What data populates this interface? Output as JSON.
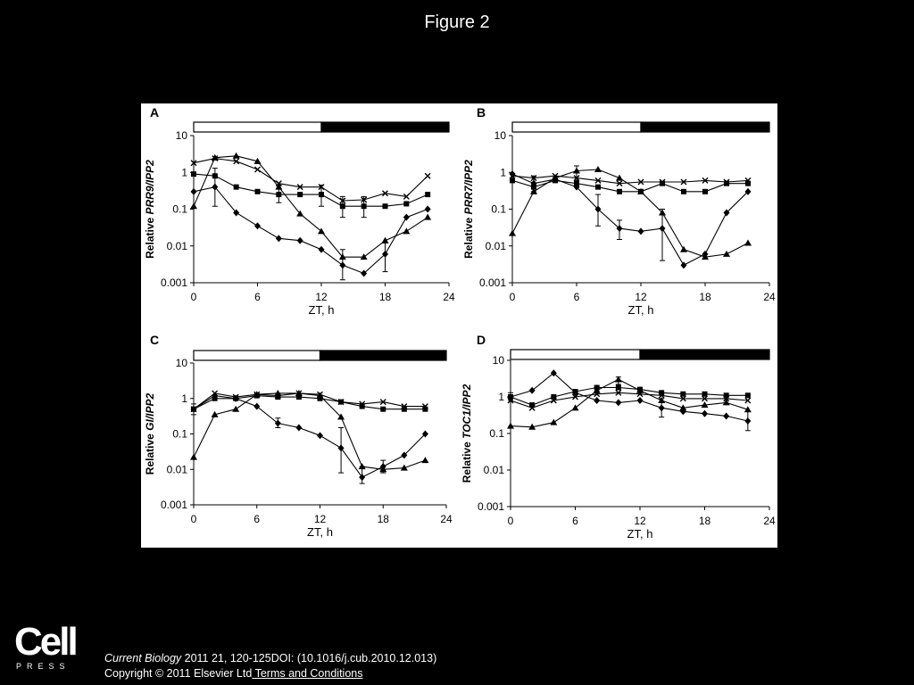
{
  "slide": {
    "title": "Figure 2"
  },
  "citation": {
    "journal": "Current Biology",
    "details": " 2011 21, 120-125DOI: (10.1016/j.cub.2010.12.013)",
    "copyright": "Copyright © 2011 Elsevier Ltd",
    "terms_link": " Terms and Conditions"
  },
  "logo": {
    "word": "Cell",
    "sub": "PRESS"
  },
  "colors": {
    "background": "#000000",
    "panel": "#ffffff",
    "ink": "#000000"
  },
  "chart_data": [
    {
      "panel": "A",
      "type": "line",
      "yscale": "log",
      "ylabel_prefix": "Relative ",
      "gene": "PRR9",
      "ylabel_suffix": "/IPP2",
      "xlabel": "ZT, h",
      "xlim": [
        0,
        24
      ],
      "ylim": [
        0.001,
        10
      ],
      "xticks": [
        "0",
        "6",
        "12",
        "18",
        "24"
      ],
      "yticks": [
        "10",
        "1",
        "0.1",
        "0.01",
        "0.001"
      ],
      "light_dark_bar": {
        "light": [
          0,
          12
        ],
        "dark": [
          12,
          24
        ]
      },
      "series": [
        {
          "marker": "diamond",
          "points": [
            [
              0,
              0.3
            ],
            [
              2,
              0.4
            ],
            [
              4,
              0.08
            ],
            [
              6,
              0.035
            ],
            [
              8,
              0.016
            ],
            [
              10,
              0.014
            ],
            [
              12,
              0.008
            ],
            [
              14,
              0.003
            ],
            [
              16,
              0.0018
            ],
            [
              18,
              0.006
            ],
            [
              20,
              0.06
            ],
            [
              22,
              0.1
            ]
          ]
        },
        {
          "marker": "square",
          "points": [
            [
              0,
              0.9
            ],
            [
              2,
              0.8
            ],
            [
              4,
              0.4
            ],
            [
              6,
              0.3
            ],
            [
              8,
              0.25
            ],
            [
              10,
              0.25
            ],
            [
              12,
              0.25
            ],
            [
              14,
              0.12
            ],
            [
              16,
              0.12
            ],
            [
              18,
              0.12
            ],
            [
              20,
              0.14
            ],
            [
              22,
              0.25
            ]
          ]
        },
        {
          "marker": "triangle",
          "points": [
            [
              0,
              0.12
            ],
            [
              2,
              2.5
            ],
            [
              4,
              2.8
            ],
            [
              6,
              2.0
            ],
            [
              8,
              0.4
            ],
            [
              10,
              0.075
            ],
            [
              12,
              0.025
            ],
            [
              14,
              0.005
            ],
            [
              16,
              0.005
            ],
            [
              18,
              0.014
            ],
            [
              20,
              0.025
            ],
            [
              22,
              0.06
            ]
          ]
        },
        {
          "marker": "cross",
          "points": [
            [
              0,
              1.8
            ],
            [
              2,
              2.4
            ],
            [
              4,
              2.0
            ],
            [
              6,
              1.2
            ],
            [
              8,
              0.5
            ],
            [
              10,
              0.4
            ],
            [
              12,
              0.4
            ],
            [
              14,
              0.17
            ],
            [
              16,
              0.18
            ],
            [
              18,
              0.27
            ],
            [
              20,
              0.22
            ],
            [
              22,
              0.8
            ]
          ]
        }
      ],
      "error_bars": [
        [
          2,
          0.4,
          0.12,
          1.3
        ],
        [
          8,
          0.25,
          0.15,
          0.45
        ],
        [
          14,
          0.003,
          0.0012,
          0.008
        ],
        [
          14,
          0.12,
          0.06,
          0.22
        ],
        [
          16,
          0.12,
          0.06,
          0.22
        ],
        [
          18,
          0.006,
          0.002,
          0.012
        ],
        [
          12,
          0.25,
          0.12,
          0.45
        ]
      ]
    },
    {
      "panel": "B",
      "type": "line",
      "yscale": "log",
      "ylabel_prefix": "Relative ",
      "gene": "PRR7",
      "ylabel_suffix": "/IPP2",
      "xlabel": "ZT, h",
      "xlim": [
        0,
        24
      ],
      "ylim": [
        0.001,
        10
      ],
      "xticks": [
        "0",
        "6",
        "12",
        "18",
        "24"
      ],
      "yticks": [
        "10",
        "1",
        "0.1",
        "0.01",
        "0.001"
      ],
      "light_dark_bar": {
        "light": [
          0,
          12
        ],
        "dark": [
          12,
          24
        ]
      },
      "series": [
        {
          "marker": "diamond",
          "points": [
            [
              0,
              0.9
            ],
            [
              2,
              0.5
            ],
            [
              4,
              0.65
            ],
            [
              6,
              0.4
            ],
            [
              8,
              0.1
            ],
            [
              10,
              0.03
            ],
            [
              12,
              0.025
            ],
            [
              14,
              0.03
            ],
            [
              16,
              0.003
            ],
            [
              18,
              0.006
            ],
            [
              20,
              0.08
            ],
            [
              22,
              0.3
            ]
          ]
        },
        {
          "marker": "square",
          "points": [
            [
              0,
              0.6
            ],
            [
              2,
              0.4
            ],
            [
              4,
              0.6
            ],
            [
              6,
              0.5
            ],
            [
              8,
              0.4
            ],
            [
              10,
              0.3
            ],
            [
              12,
              0.3
            ],
            [
              14,
              0.5
            ],
            [
              16,
              0.3
            ],
            [
              18,
              0.3
            ],
            [
              20,
              0.5
            ],
            [
              22,
              0.5
            ]
          ]
        },
        {
          "marker": "triangle",
          "points": [
            [
              0,
              0.022
            ],
            [
              2,
              0.3
            ],
            [
              4,
              0.7
            ],
            [
              6,
              1.1
            ],
            [
              8,
              1.2
            ],
            [
              10,
              0.7
            ],
            [
              12,
              0.3
            ],
            [
              14,
              0.08
            ],
            [
              16,
              0.008
            ],
            [
              18,
              0.005
            ],
            [
              20,
              0.006
            ],
            [
              22,
              0.012
            ]
          ]
        },
        {
          "marker": "cross",
          "points": [
            [
              0,
              0.8
            ],
            [
              2,
              0.7
            ],
            [
              4,
              0.8
            ],
            [
              6,
              0.7
            ],
            [
              8,
              0.6
            ],
            [
              10,
              0.5
            ],
            [
              12,
              0.55
            ],
            [
              14,
              0.55
            ],
            [
              16,
              0.55
            ],
            [
              18,
              0.6
            ],
            [
              20,
              0.55
            ],
            [
              22,
              0.6
            ]
          ]
        }
      ],
      "error_bars": [
        [
          8,
          0.1,
          0.035,
          0.25
        ],
        [
          10,
          0.03,
          0.015,
          0.05
        ],
        [
          14,
          0.03,
          0.004,
          0.1
        ],
        [
          6,
          1.1,
          0.6,
          1.5
        ],
        [
          2,
          0.5,
          0.3,
          0.8
        ]
      ]
    },
    {
      "panel": "C",
      "type": "line",
      "yscale": "log",
      "ylabel_prefix": "Relative ",
      "gene": "GI",
      "ylabel_suffix": "/IPP2",
      "xlabel": "ZT, h",
      "xlim": [
        0,
        24
      ],
      "ylim": [
        0.001,
        10
      ],
      "xticks": [
        "0",
        "6",
        "12",
        "18",
        "24"
      ],
      "yticks": [
        "10",
        "1",
        "0.1",
        "0.01",
        "0.001"
      ],
      "light_dark_bar": {
        "light": [
          0,
          12
        ],
        "dark": [
          12,
          24
        ]
      },
      "series": [
        {
          "marker": "diamond",
          "points": [
            [
              0,
              0.5
            ],
            [
              2,
              1.2
            ],
            [
              4,
              1.0
            ],
            [
              6,
              0.6
            ],
            [
              8,
              0.2
            ],
            [
              10,
              0.15
            ],
            [
              12,
              0.09
            ],
            [
              14,
              0.04
            ],
            [
              16,
              0.006
            ],
            [
              18,
              0.012
            ],
            [
              20,
              0.025
            ],
            [
              22,
              0.1
            ]
          ]
        },
        {
          "marker": "square",
          "points": [
            [
              0,
              0.5
            ],
            [
              2,
              1.0
            ],
            [
              4,
              1.0
            ],
            [
              6,
              1.2
            ],
            [
              8,
              1.1
            ],
            [
              10,
              1.1
            ],
            [
              12,
              1.0
            ],
            [
              14,
              0.8
            ],
            [
              16,
              0.6
            ],
            [
              18,
              0.5
            ],
            [
              20,
              0.5
            ],
            [
              22,
              0.5
            ]
          ]
        },
        {
          "marker": "triangle",
          "points": [
            [
              0,
              0.022
            ],
            [
              2,
              0.35
            ],
            [
              4,
              0.5
            ],
            [
              6,
              1.3
            ],
            [
              8,
              1.4
            ],
            [
              10,
              1.4
            ],
            [
              12,
              1.2
            ],
            [
              14,
              0.3
            ],
            [
              16,
              0.012
            ],
            [
              18,
              0.01
            ],
            [
              20,
              0.011
            ],
            [
              22,
              0.018
            ]
          ]
        },
        {
          "marker": "cross",
          "points": [
            [
              0,
              0.5
            ],
            [
              2,
              1.4
            ],
            [
              4,
              1.1
            ],
            [
              6,
              1.3
            ],
            [
              8,
              1.2
            ],
            [
              10,
              1.4
            ],
            [
              12,
              1.3
            ],
            [
              14,
              0.8
            ],
            [
              16,
              0.7
            ],
            [
              18,
              0.8
            ],
            [
              20,
              0.6
            ],
            [
              22,
              0.6
            ]
          ]
        }
      ],
      "error_bars": [
        [
          14,
          0.04,
          0.008,
          0.15
        ],
        [
          16,
          0.006,
          0.004,
          0.012
        ],
        [
          18,
          0.012,
          0.008,
          0.018
        ],
        [
          8,
          0.2,
          0.15,
          0.28
        ],
        [
          0,
          0.5,
          0.35,
          0.7
        ]
      ]
    },
    {
      "panel": "D",
      "type": "line",
      "yscale": "log",
      "ylabel_prefix": "Relative ",
      "gene": "TOC1",
      "ylabel_suffix": "/IPP2",
      "xlabel": "ZT, h",
      "xlim": [
        0,
        24
      ],
      "ylim": [
        0.001,
        10
      ],
      "xticks": [
        "0",
        "6",
        "12",
        "18",
        "24"
      ],
      "yticks": [
        "10",
        "1",
        "0.1",
        "0.01",
        "0.001"
      ],
      "light_dark_bar": {
        "light": [
          0,
          12
        ],
        "dark": [
          12,
          24
        ]
      },
      "series": [
        {
          "marker": "diamond",
          "points": [
            [
              0,
              1.0
            ],
            [
              2,
              1.5
            ],
            [
              4,
              4.5
            ],
            [
              6,
              1.3
            ],
            [
              8,
              0.8
            ],
            [
              10,
              0.7
            ],
            [
              12,
              0.8
            ],
            [
              14,
              0.5
            ],
            [
              16,
              0.4
            ],
            [
              18,
              0.35
            ],
            [
              20,
              0.3
            ],
            [
              22,
              0.22
            ]
          ]
        },
        {
          "marker": "square",
          "points": [
            [
              0,
              1.0
            ],
            [
              2,
              0.6
            ],
            [
              4,
              1.0
            ],
            [
              6,
              1.4
            ],
            [
              8,
              1.8
            ],
            [
              10,
              1.8
            ],
            [
              12,
              1.6
            ],
            [
              14,
              1.3
            ],
            [
              16,
              1.2
            ],
            [
              18,
              1.2
            ],
            [
              20,
              1.1
            ],
            [
              22,
              1.1
            ]
          ]
        },
        {
          "marker": "triangle",
          "points": [
            [
              0,
              0.16
            ],
            [
              2,
              0.15
            ],
            [
              4,
              0.2
            ],
            [
              6,
              0.5
            ],
            [
              8,
              1.5
            ],
            [
              10,
              3.0
            ],
            [
              12,
              1.5
            ],
            [
              14,
              0.8
            ],
            [
              16,
              0.5
            ],
            [
              18,
              0.6
            ],
            [
              20,
              0.7
            ],
            [
              22,
              0.45
            ]
          ]
        },
        {
          "marker": "cross",
          "points": [
            [
              0,
              0.8
            ],
            [
              2,
              0.5
            ],
            [
              4,
              0.8
            ],
            [
              6,
              1.0
            ],
            [
              8,
              1.2
            ],
            [
              10,
              1.3
            ],
            [
              12,
              1.2
            ],
            [
              14,
              1.1
            ],
            [
              16,
              0.9
            ],
            [
              18,
              0.9
            ],
            [
              20,
              0.9
            ],
            [
              22,
              0.8
            ]
          ]
        }
      ],
      "error_bars": [
        [
          14,
          0.5,
          0.28,
          0.9
        ],
        [
          22,
          0.22,
          0.12,
          0.4
        ],
        [
          10,
          3.0,
          2.2,
          3.5
        ],
        [
          0,
          1.0,
          0.8,
          1.3
        ]
      ]
    }
  ]
}
